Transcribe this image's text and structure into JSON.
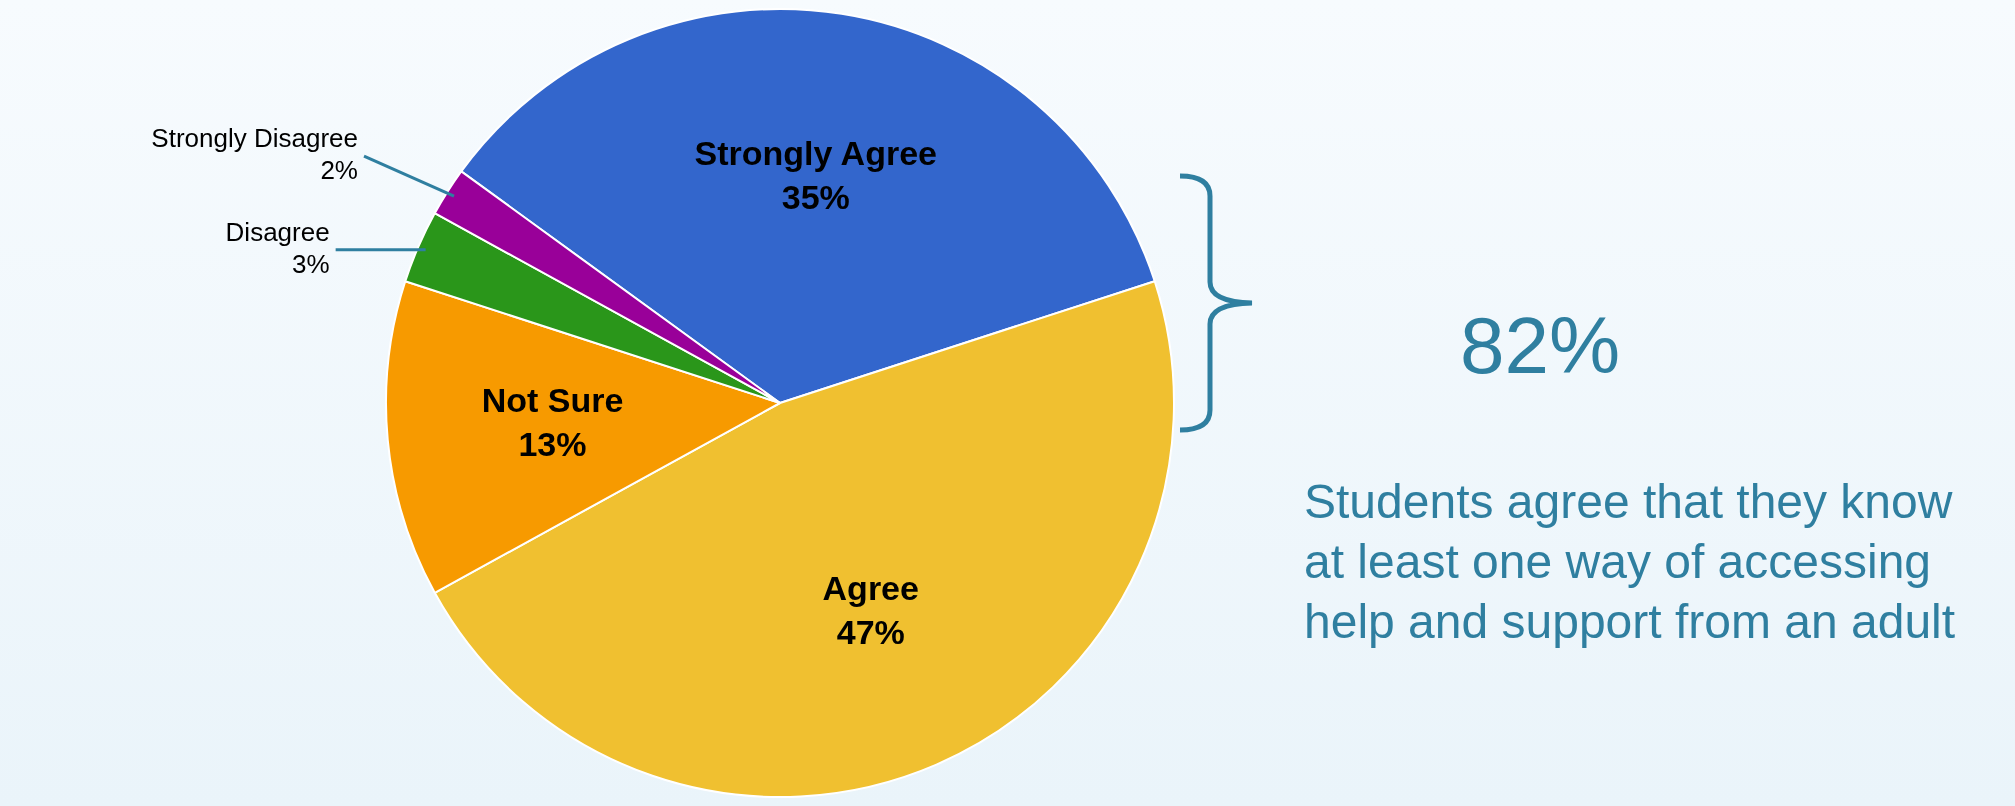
{
  "chart_data": {
    "type": "pie",
    "categories": [
      "Strongly Agree",
      "Agree",
      "Not Sure",
      "Disagree",
      "Strongly Disagree"
    ],
    "values": [
      35,
      47,
      13,
      3,
      2
    ],
    "colors": [
      "#3366cc",
      "#f0c030",
      "#f79a00",
      "#2a961a",
      "#990099"
    ],
    "value_labels": [
      "35%",
      "47%",
      "13%",
      "3%",
      "2%"
    ],
    "annotations": [
      "82%",
      "Students agree that they know at least one way of accessing help and support from an adult"
    ]
  }
}
